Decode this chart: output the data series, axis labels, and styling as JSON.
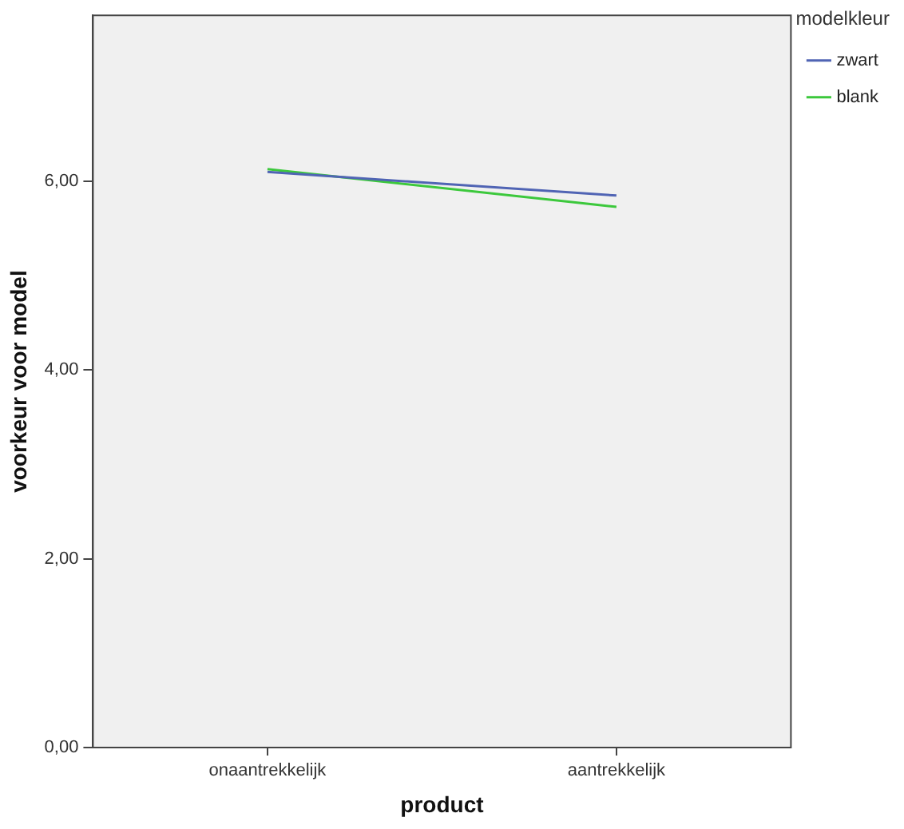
{
  "chart_data": {
    "type": "line",
    "xlabel": "product",
    "ylabel": "voorkeur voor model",
    "legend_title": "modelkleur",
    "categories": [
      "onaantrekkelijk",
      "aantrekkelijk"
    ],
    "series": [
      {
        "name": "zwart",
        "color": "#5064b4",
        "values": [
          6.1,
          5.85
        ]
      },
      {
        "name": "blank",
        "color": "#3cc83c",
        "values": [
          6.13,
          5.73
        ]
      }
    ],
    "ylim": [
      0,
      7.76
    ],
    "yticks": [
      {
        "value": 0,
        "label": "0,00"
      },
      {
        "value": 2,
        "label": "2,00"
      },
      {
        "value": 4,
        "label": "4,00"
      },
      {
        "value": 6,
        "label": "6,00"
      }
    ],
    "grid": false,
    "legend": "top right",
    "marker": "none",
    "line_style": "solid"
  }
}
